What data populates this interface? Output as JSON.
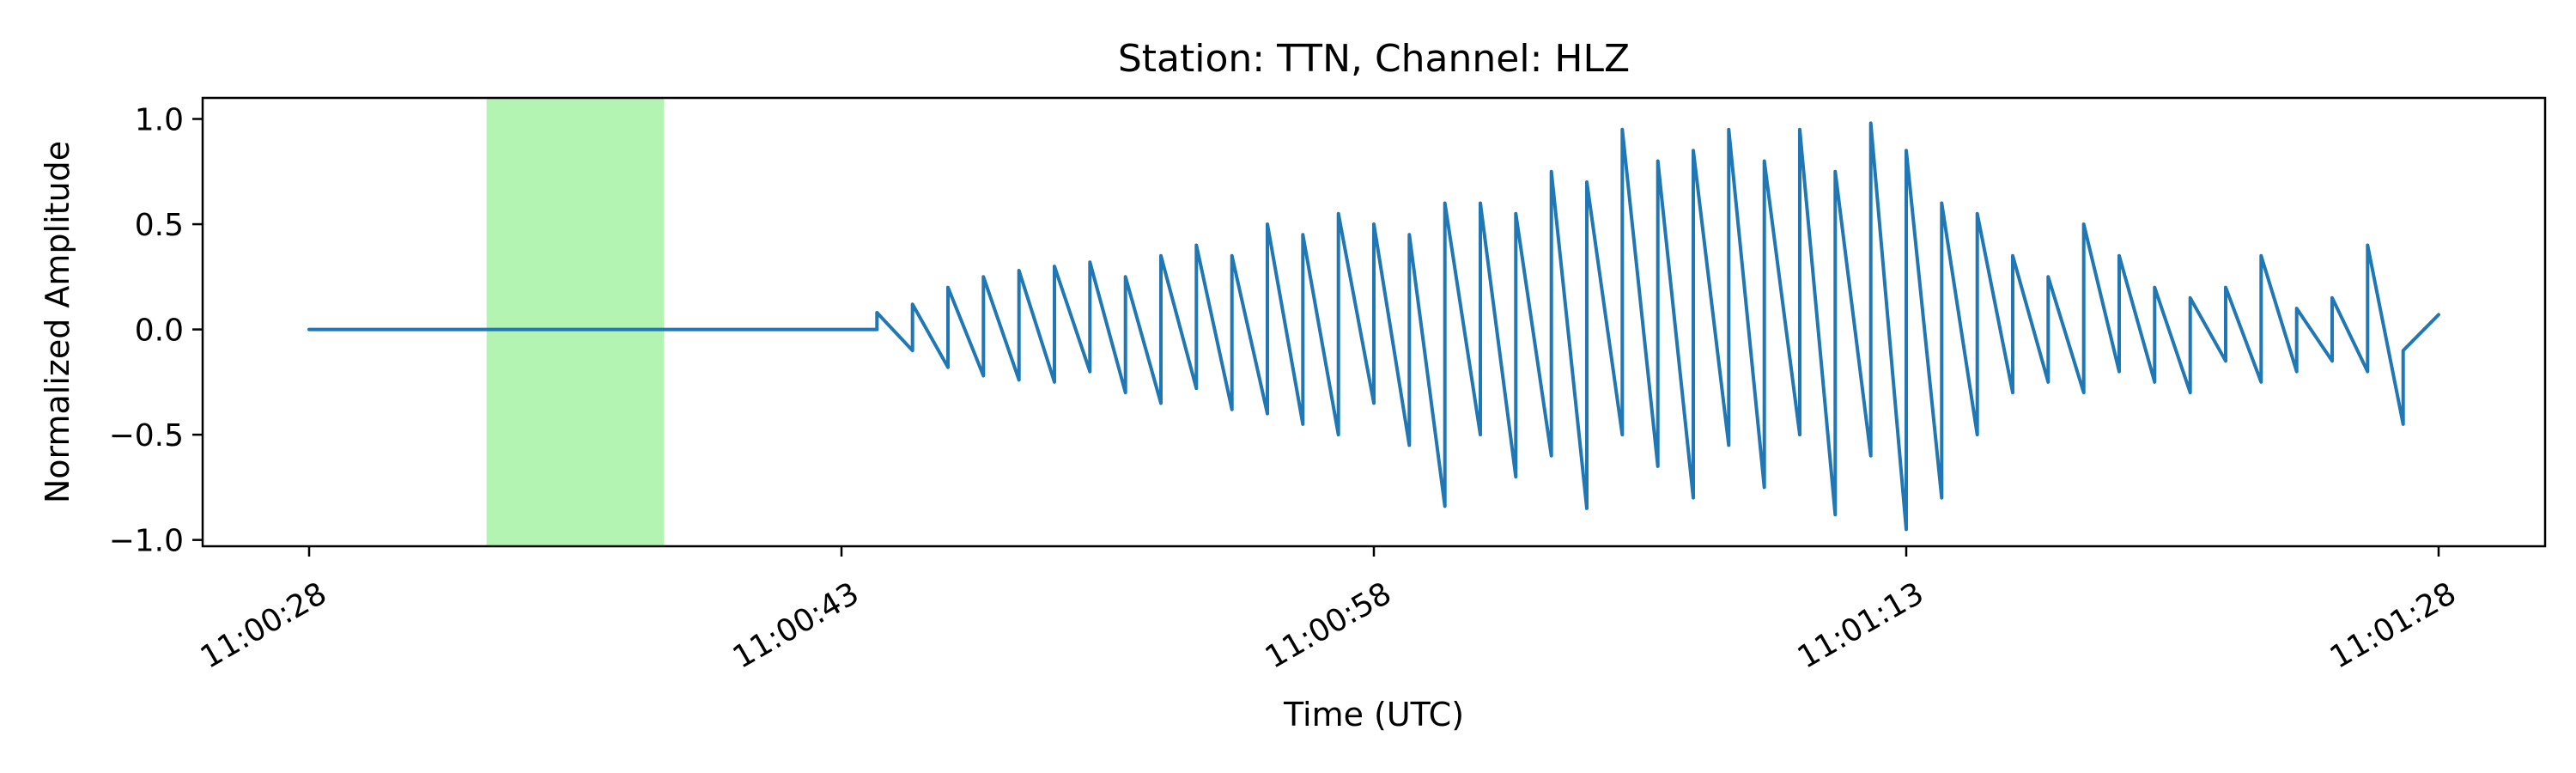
{
  "chart_data": {
    "type": "line",
    "title": "Station: TTN, Channel: HLZ",
    "xlabel": "Time (UTC)",
    "ylabel": "Normalized Amplitude",
    "xlim": [
      "11:00:25",
      "11:01:31"
    ],
    "ylim": [
      -1.03,
      1.1
    ],
    "grid": false,
    "x_ticks": [
      "11:00:28",
      "11:00:43",
      "11:00:58",
      "11:01:13",
      "11:01:28"
    ],
    "y_ticks": [
      1.0,
      0.5,
      0.0,
      -0.5,
      -1.0
    ],
    "y_tick_labels": [
      "1.0",
      "0.5",
      "0.0",
      "−0.5",
      "−1.0"
    ],
    "highlight_window": {
      "start": "11:00:33",
      "end": "11:00:38",
      "color": "#b3f4b3"
    },
    "series": [
      {
        "color": "#1f77b4",
        "x": [
          "11:00:28",
          "11:00:30",
          "11:00:32",
          "11:00:34",
          "11:00:36",
          "11:00:38",
          "11:00:40",
          "11:00:42",
          "11:00:44",
          "11:00:44",
          "11:00:45",
          "11:00:45",
          "11:00:46",
          "11:00:46",
          "11:00:47",
          "11:00:47",
          "11:00:48",
          "11:00:48",
          "11:00:49",
          "11:00:49",
          "11:00:50",
          "11:00:50",
          "11:00:51",
          "11:00:51",
          "11:00:52",
          "11:00:52",
          "11:00:53",
          "11:00:53",
          "11:00:54",
          "11:00:54",
          "11:00:55",
          "11:00:55",
          "11:00:56",
          "11:00:56",
          "11:00:57",
          "11:00:57",
          "11:00:58",
          "11:00:58",
          "11:00:59",
          "11:00:59",
          "11:01:00",
          "11:01:00",
          "11:01:01",
          "11:01:01",
          "11:01:02",
          "11:01:02",
          "11:01:03",
          "11:01:03",
          "11:01:04",
          "11:01:04",
          "11:01:05",
          "11:01:05",
          "11:01:06",
          "11:01:06",
          "11:01:07",
          "11:01:07",
          "11:01:08",
          "11:01:08",
          "11:01:09",
          "11:01:09",
          "11:01:10",
          "11:01:10",
          "11:01:11",
          "11:01:11",
          "11:01:12",
          "11:01:12",
          "11:01:13",
          "11:01:13",
          "11:01:14",
          "11:01:14",
          "11:01:15",
          "11:01:15",
          "11:01:16",
          "11:01:16",
          "11:01:17",
          "11:01:17",
          "11:01:18",
          "11:01:18",
          "11:01:19",
          "11:01:19",
          "11:01:20",
          "11:01:20",
          "11:01:21",
          "11:01:21",
          "11:01:22",
          "11:01:22",
          "11:01:23",
          "11:01:23",
          "11:01:24",
          "11:01:24",
          "11:01:25",
          "11:01:25",
          "11:01:26",
          "11:01:26",
          "11:01:27",
          "11:01:27",
          "11:01:28"
        ],
        "values": [
          0.0,
          0.0,
          0.0,
          0.0,
          0.0,
          0.0,
          0.0,
          0.0,
          0.0,
          0.08,
          -0.1,
          0.12,
          -0.18,
          0.2,
          -0.22,
          0.25,
          -0.24,
          0.28,
          -0.25,
          0.3,
          -0.2,
          0.32,
          -0.3,
          0.25,
          -0.35,
          0.35,
          -0.28,
          0.4,
          -0.38,
          0.35,
          -0.4,
          0.5,
          -0.45,
          0.45,
          -0.5,
          0.55,
          -0.35,
          0.5,
          -0.55,
          0.45,
          -0.84,
          0.6,
          -0.5,
          0.6,
          -0.7,
          0.55,
          -0.6,
          0.75,
          -0.85,
          0.7,
          -0.5,
          0.95,
          -0.65,
          0.8,
          -0.8,
          0.85,
          -0.55,
          0.95,
          -0.75,
          0.8,
          -0.5,
          0.95,
          -0.88,
          0.75,
          -0.6,
          0.98,
          -0.95,
          0.85,
          -0.8,
          0.6,
          -0.5,
          0.55,
          -0.3,
          0.35,
          -0.25,
          0.25,
          -0.3,
          0.5,
          -0.2,
          0.35,
          -0.25,
          0.2,
          -0.3,
          0.15,
          -0.15,
          0.2,
          -0.25,
          0.35,
          -0.2,
          0.1,
          -0.15,
          0.15,
          -0.2,
          0.4,
          -0.45,
          -0.1,
          0.07
        ]
      }
    ]
  }
}
